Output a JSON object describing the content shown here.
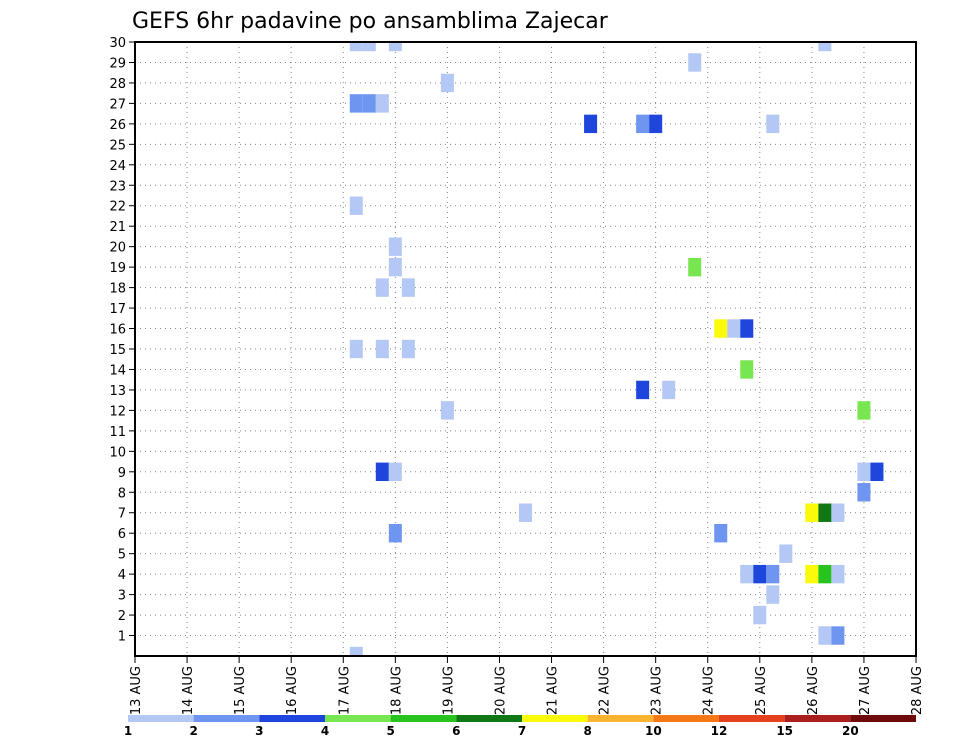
{
  "chart_data": {
    "type": "heatmap",
    "title": "GEFS 6hr padavine po ansamblima Zajecar",
    "xlabel": "",
    "ylabel": "",
    "x_ticks": [
      "13 AUG",
      "14 AUG",
      "15 AUG",
      "16 AUG",
      "17 AUG",
      "18 AUG",
      "19 AUG",
      "20 AUG",
      "21 AUG",
      "22 AUG",
      "23 AUG",
      "24 AUG",
      "25 AUG",
      "26 AUG",
      "27 AUG",
      "28 AUG"
    ],
    "y_ticks": [
      "1",
      "2",
      "3",
      "4",
      "5",
      "6",
      "7",
      "8",
      "9",
      "10",
      "11",
      "12",
      "13",
      "14",
      "15",
      "16",
      "17",
      "18",
      "19",
      "20",
      "21",
      "22",
      "23",
      "24",
      "25",
      "26",
      "27",
      "28",
      "29",
      "30"
    ],
    "xlim_days": [
      0,
      15
    ],
    "ylim": [
      0,
      30
    ],
    "grid": true,
    "colorbar": {
      "labels": [
        "1",
        "2",
        "3",
        "4",
        "5",
        "6",
        "7",
        "8",
        "10",
        "12",
        "15",
        "20"
      ],
      "colors": [
        "#b4c8f5",
        "#6e96f0",
        "#1e46dc",
        "#78e650",
        "#28c31e",
        "#0f7814",
        "#fafa0a",
        "#fab432",
        "#f57814",
        "#e6411e",
        "#aa1e1e",
        "#6e0a0a"
      ]
    },
    "cells": [
      {
        "t": 17.25,
        "m": 0,
        "v": 1.5
      },
      {
        "t": 17.25,
        "m": 30,
        "v": 1.5
      },
      {
        "t": 17.5,
        "m": 30,
        "v": 1.5
      },
      {
        "t": 17.25,
        "m": 27,
        "v": 2.5
      },
      {
        "t": 17.5,
        "m": 27,
        "v": 2.5
      },
      {
        "t": 17.75,
        "m": 27,
        "v": 1.5
      },
      {
        "t": 17.25,
        "m": 22,
        "v": 1.5
      },
      {
        "t": 17.25,
        "m": 15,
        "v": 1.5
      },
      {
        "t": 17.75,
        "m": 15,
        "v": 1.5
      },
      {
        "t": 17.75,
        "m": 18,
        "v": 1.5
      },
      {
        "t": 17.75,
        "m": 9,
        "v": 3.5
      },
      {
        "t": 18.0,
        "m": 30,
        "v": 1.5
      },
      {
        "t": 18.0,
        "m": 20,
        "v": 1.5
      },
      {
        "t": 18.0,
        "m": 19,
        "v": 1.5
      },
      {
        "t": 18.0,
        "m": 9,
        "v": 1.5
      },
      {
        "t": 18.0,
        "m": 6,
        "v": 2.5
      },
      {
        "t": 18.25,
        "m": 18,
        "v": 1.5
      },
      {
        "t": 18.25,
        "m": 15,
        "v": 1.5
      },
      {
        "t": 19.0,
        "m": 28,
        "v": 1.5
      },
      {
        "t": 19.0,
        "m": 12,
        "v": 1.5
      },
      {
        "t": 20.5,
        "m": 7,
        "v": 1.5
      },
      {
        "t": 21.75,
        "m": 26,
        "v": 3.5
      },
      {
        "t": 22.75,
        "m": 26,
        "v": 2.5
      },
      {
        "t": 23.0,
        "m": 26,
        "v": 3.5
      },
      {
        "t": 22.75,
        "m": 13,
        "v": 3.5
      },
      {
        "t": 23.25,
        "m": 13,
        "v": 1.5
      },
      {
        "t": 23.75,
        "m": 29,
        "v": 1.5
      },
      {
        "t": 23.75,
        "m": 19,
        "v": 4.5
      },
      {
        "t": 24.25,
        "m": 16,
        "v": 7.5
      },
      {
        "t": 24.5,
        "m": 16,
        "v": 1.5
      },
      {
        "t": 24.75,
        "m": 16,
        "v": 3.5
      },
      {
        "t": 24.75,
        "m": 14,
        "v": 4.5
      },
      {
        "t": 24.25,
        "m": 6,
        "v": 2.5
      },
      {
        "t": 24.75,
        "m": 4,
        "v": 1.5
      },
      {
        "t": 25.0,
        "m": 4,
        "v": 3.5
      },
      {
        "t": 25.0,
        "m": 2,
        "v": 1.5
      },
      {
        "t": 25.25,
        "m": 26,
        "v": 1.5
      },
      {
        "t": 25.25,
        "m": 4,
        "v": 2.5
      },
      {
        "t": 25.25,
        "m": 3,
        "v": 1.5
      },
      {
        "t": 25.5,
        "m": 5,
        "v": 1.5
      },
      {
        "t": 26.0,
        "m": 7,
        "v": 7.5
      },
      {
        "t": 26.25,
        "m": 7,
        "v": 6.5
      },
      {
        "t": 26.5,
        "m": 7,
        "v": 1.5
      },
      {
        "t": 26.0,
        "m": 4,
        "v": 7.5
      },
      {
        "t": 26.25,
        "m": 4,
        "v": 5.5
      },
      {
        "t": 26.5,
        "m": 4,
        "v": 1.5
      },
      {
        "t": 26.25,
        "m": 30,
        "v": 1.5
      },
      {
        "t": 26.25,
        "m": 1,
        "v": 1.5
      },
      {
        "t": 26.5,
        "m": 1,
        "v": 2.5
      },
      {
        "t": 27.0,
        "m": 12,
        "v": 4.5
      },
      {
        "t": 27.0,
        "m": 9,
        "v": 1.5
      },
      {
        "t": 27.25,
        "m": 9,
        "v": 3.5
      },
      {
        "t": 27.0,
        "m": 8,
        "v": 2.5
      }
    ]
  }
}
